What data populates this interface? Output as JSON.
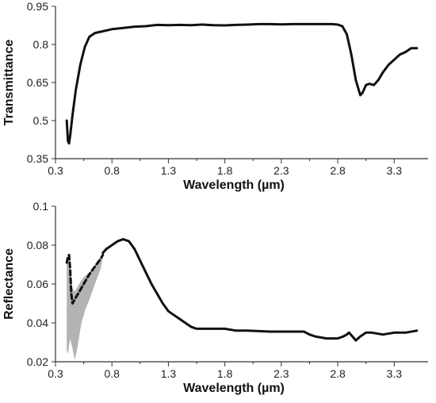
{
  "colors": {
    "line": "#111111",
    "axis": "#333333",
    "band": "#b3b3b3"
  },
  "chart_data": [
    {
      "type": "line",
      "xlabel": "Wavelength (µm)",
      "ylabel": "Transmittance",
      "xlim": [
        0.3,
        3.6
      ],
      "ylim": [
        0.35,
        0.95
      ],
      "xticks": [
        "0.3",
        "0.8",
        "1.3",
        "1.8",
        "2.3",
        "2.8",
        "3.3"
      ],
      "yticks": [
        "0.35",
        "0.5",
        "0.65",
        "0.8",
        "0.95"
      ],
      "series": [
        {
          "style": "solid",
          "x": [
            0.4,
            0.41,
            0.42,
            0.43,
            0.45,
            0.48,
            0.52,
            0.56,
            0.6,
            0.65,
            0.7,
            0.8,
            0.9,
            1.0,
            1.1,
            1.2,
            1.3,
            1.4,
            1.5,
            1.6,
            1.7,
            1.8,
            1.9,
            2.0,
            2.1,
            2.2,
            2.3,
            2.4,
            2.5,
            2.6,
            2.7,
            2.75,
            2.8,
            2.84,
            2.88,
            2.92,
            2.96,
            3.0,
            3.02,
            3.05,
            3.08,
            3.12,
            3.16,
            3.2,
            3.25,
            3.3,
            3.35,
            3.4,
            3.45,
            3.5
          ],
          "y": [
            0.5,
            0.42,
            0.41,
            0.44,
            0.52,
            0.62,
            0.72,
            0.79,
            0.83,
            0.845,
            0.85,
            0.86,
            0.865,
            0.87,
            0.872,
            0.877,
            0.876,
            0.877,
            0.876,
            0.878,
            0.876,
            0.875,
            0.877,
            0.878,
            0.88,
            0.88,
            0.879,
            0.88,
            0.88,
            0.88,
            0.88,
            0.88,
            0.878,
            0.872,
            0.84,
            0.76,
            0.66,
            0.6,
            0.61,
            0.64,
            0.645,
            0.64,
            0.66,
            0.69,
            0.72,
            0.74,
            0.76,
            0.77,
            0.785,
            0.785
          ]
        }
      ]
    },
    {
      "type": "line",
      "xlabel": "Wavelength (µm)",
      "ylabel": "Reflectance",
      "xlim": [
        0.3,
        3.6
      ],
      "ylim": [
        0.02,
        0.1
      ],
      "xticks": [
        "0.3",
        "0.8",
        "1.3",
        "1.8",
        "2.3",
        "2.8",
        "3.3"
      ],
      "yticks": [
        "0.02",
        "0.04",
        "0.06",
        "0.08",
        "0.1"
      ],
      "band": {
        "x": [
          0.4,
          0.41,
          0.42,
          0.43,
          0.45,
          0.47,
          0.49,
          0.51,
          0.53,
          0.56,
          0.6,
          0.65,
          0.7,
          0.72
        ],
        "upper": [
          0.07,
          0.074,
          0.072,
          0.066,
          0.058,
          0.056,
          0.058,
          0.06,
          0.062,
          0.064,
          0.066,
          0.07,
          0.074,
          0.076
        ],
        "lower": [
          0.026,
          0.024,
          0.028,
          0.032,
          0.027,
          0.021,
          0.026,
          0.033,
          0.04,
          0.046,
          0.052,
          0.06,
          0.068,
          0.074
        ]
      },
      "series": [
        {
          "style": "dashed",
          "x": [
            0.4,
            0.41,
            0.42,
            0.43,
            0.44,
            0.45,
            0.46,
            0.48,
            0.5,
            0.53,
            0.56,
            0.6,
            0.65,
            0.7,
            0.72
          ],
          "y": [
            0.071,
            0.074,
            0.075,
            0.068,
            0.055,
            0.05,
            0.051,
            0.053,
            0.055,
            0.058,
            0.061,
            0.065,
            0.069,
            0.073,
            0.075
          ]
        },
        {
          "style": "solid",
          "x": [
            0.72,
            0.75,
            0.8,
            0.85,
            0.9,
            0.95,
            1.0,
            1.05,
            1.1,
            1.15,
            1.2,
            1.25,
            1.3,
            1.35,
            1.4,
            1.45,
            1.5,
            1.55,
            1.6,
            1.7,
            1.8,
            1.9,
            2.0,
            2.2,
            2.4,
            2.5,
            2.55,
            2.6,
            2.7,
            2.8,
            2.85,
            2.88,
            2.9,
            2.93,
            2.96,
            3.0,
            3.05,
            3.1,
            3.2,
            3.3,
            3.4,
            3.5
          ],
          "y": [
            0.076,
            0.078,
            0.08,
            0.082,
            0.083,
            0.082,
            0.078,
            0.072,
            0.066,
            0.06,
            0.055,
            0.05,
            0.046,
            0.044,
            0.042,
            0.04,
            0.038,
            0.037,
            0.037,
            0.037,
            0.037,
            0.036,
            0.036,
            0.0355,
            0.0355,
            0.0355,
            0.034,
            0.033,
            0.032,
            0.032,
            0.033,
            0.034,
            0.035,
            0.033,
            0.031,
            0.033,
            0.035,
            0.035,
            0.034,
            0.035,
            0.035,
            0.036
          ]
        }
      ]
    }
  ]
}
